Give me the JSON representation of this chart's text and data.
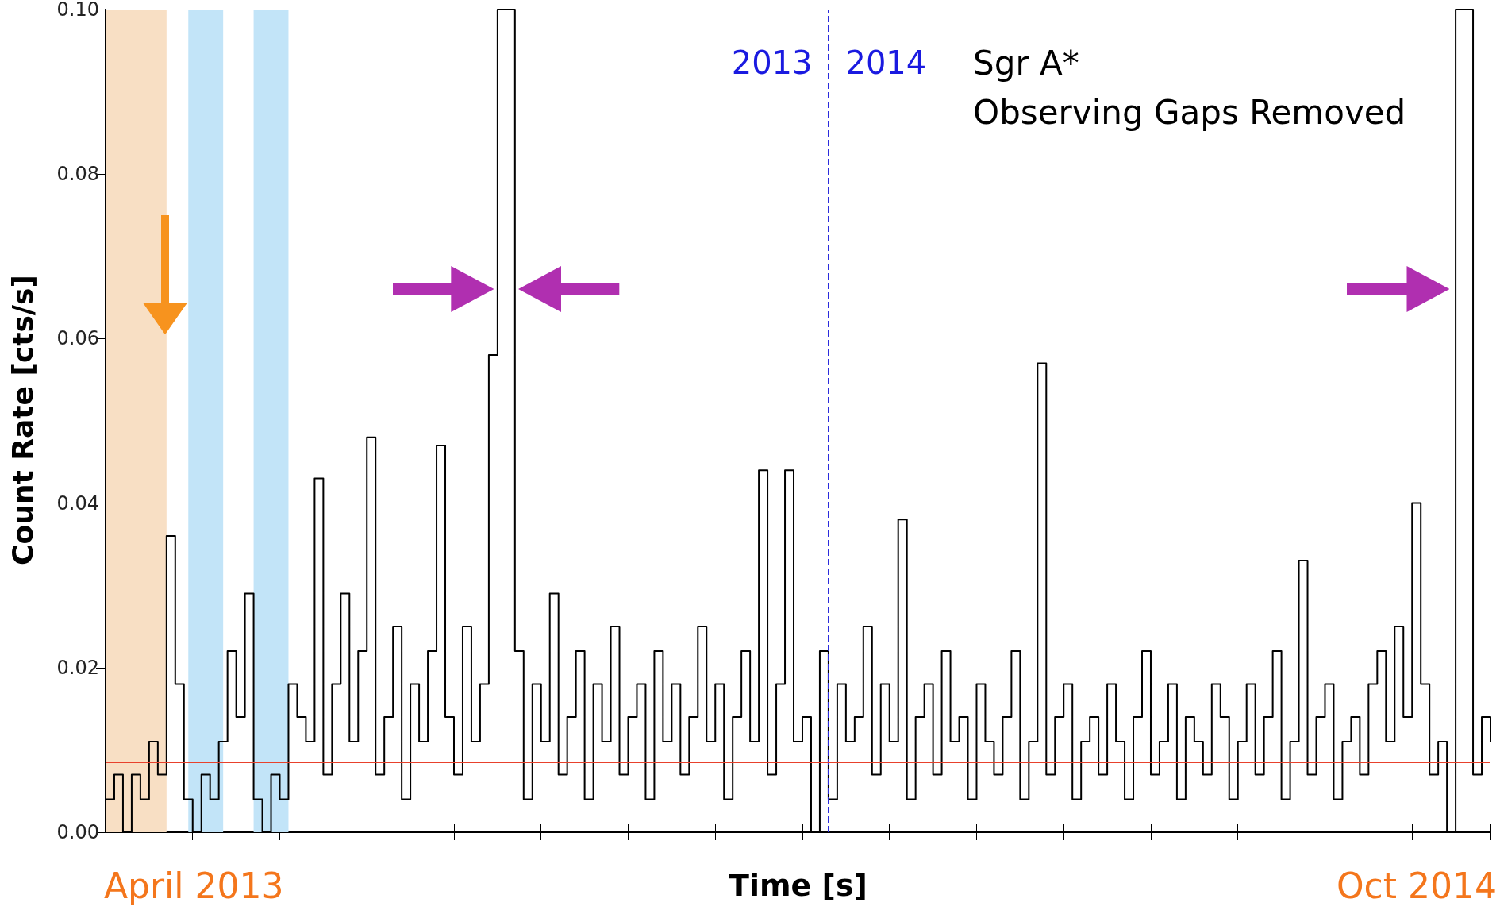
{
  "chart_data": {
    "type": "step",
    "xlabel": "Time [s]",
    "ylabel": "Count Rate [cts/s]",
    "categories": [
      null,
      null,
      null,
      null,
      null,
      null,
      null,
      null,
      null,
      null,
      null,
      null,
      null,
      null,
      null,
      null,
      null,
      null,
      null,
      null,
      null,
      null,
      null,
      null,
      null,
      null,
      null,
      null,
      null,
      null,
      null,
      null,
      null,
      null,
      null,
      null,
      null,
      null,
      null,
      null,
      null,
      null,
      null,
      null,
      null,
      null,
      null,
      null,
      null,
      null,
      null,
      null,
      null,
      null,
      null,
      null,
      null,
      null,
      null,
      null,
      null,
      null,
      null,
      null,
      null,
      null,
      null,
      null,
      null,
      null,
      null,
      null,
      null,
      null,
      null,
      null,
      null,
      null,
      null,
      null,
      null,
      null,
      null,
      null,
      null,
      null,
      null,
      null,
      null,
      null,
      null,
      null,
      null,
      null,
      null,
      null,
      null,
      null,
      null,
      null,
      null,
      null,
      null,
      null,
      null,
      null,
      null,
      null,
      null,
      null,
      null,
      null,
      null,
      null,
      null,
      null,
      null,
      null,
      null,
      null,
      null,
      null,
      null,
      null,
      null,
      null,
      null,
      null,
      null,
      null,
      null,
      null,
      null,
      null,
      null,
      null,
      null,
      null,
      null,
      null,
      null,
      null,
      null,
      null,
      null,
      null,
      null,
      null,
      null,
      null,
      null,
      null,
      null,
      null,
      null,
      null,
      null,
      null,
      null,
      null
    ],
    "series": [
      {
        "color": "#000000",
        "values": [
          0.004,
          0.007,
          0.0,
          0.007,
          0.004,
          0.011,
          0.007,
          0.036,
          0.018,
          0.004,
          0.0,
          0.007,
          0.004,
          0.011,
          0.022,
          0.014,
          0.029,
          0.004,
          0.0,
          0.007,
          0.004,
          0.018,
          0.014,
          0.011,
          0.043,
          0.007,
          0.018,
          0.029,
          0.011,
          0.022,
          0.048,
          0.007,
          0.014,
          0.025,
          0.004,
          0.018,
          0.011,
          0.022,
          0.047,
          0.014,
          0.007,
          0.025,
          0.011,
          0.018,
          0.058,
          0.1,
          0.1,
          0.022,
          0.004,
          0.018,
          0.011,
          0.029,
          0.007,
          0.014,
          0.022,
          0.004,
          0.018,
          0.011,
          0.025,
          0.007,
          0.014,
          0.018,
          0.004,
          0.022,
          0.011,
          0.018,
          0.007,
          0.014,
          0.025,
          0.011,
          0.018,
          0.004,
          0.014,
          0.022,
          0.011,
          0.044,
          0.007,
          0.018,
          0.044,
          0.011,
          0.014,
          0.0,
          0.022,
          0.004,
          0.018,
          0.011,
          0.014,
          0.025,
          0.007,
          0.018,
          0.011,
          0.038,
          0.004,
          0.014,
          0.018,
          0.007,
          0.022,
          0.011,
          0.014,
          0.004,
          0.018,
          0.011,
          0.007,
          0.014,
          0.022,
          0.004,
          0.011,
          0.057,
          0.007,
          0.014,
          0.018,
          0.004,
          0.011,
          0.014,
          0.007,
          0.018,
          0.011,
          0.004,
          0.014,
          0.022,
          0.007,
          0.011,
          0.018,
          0.004,
          0.014,
          0.011,
          0.007,
          0.018,
          0.014,
          0.004,
          0.011,
          0.018,
          0.007,
          0.014,
          0.022,
          0.004,
          0.011,
          0.033,
          0.007,
          0.014,
          0.018,
          0.004,
          0.011,
          0.014,
          0.007,
          0.018,
          0.022,
          0.011,
          0.025,
          0.014,
          0.04,
          0.018,
          0.007,
          0.011,
          0.0,
          0.1,
          0.1,
          0.007,
          0.014,
          0.011
        ]
      }
    ],
    "ylim": [
      0,
      0.1
    ],
    "yticks": [
      {
        "value": 0,
        "label": "0.00"
      },
      {
        "value": 0.02,
        "label": "0.02"
      },
      {
        "value": 0.04,
        "label": "0.04"
      },
      {
        "value": 0.06,
        "label": "0.06"
      },
      {
        "value": 0.08,
        "label": "0.08"
      },
      {
        "value": 0.1,
        "label": "0.10"
      }
    ],
    "tick_labels": "y",
    "grid": false,
    "marker": "none",
    "line_style": "solid",
    "ref_lines": [
      {
        "axis": "y",
        "value": 0.0085,
        "color": "#e8412c",
        "line_style": "solid"
      }
    ],
    "annotations": [
      "2013",
      "2014",
      "Sgr A*",
      "Observing Gaps Removed",
      "April 2013",
      "Oct 2014"
    ]
  }
}
